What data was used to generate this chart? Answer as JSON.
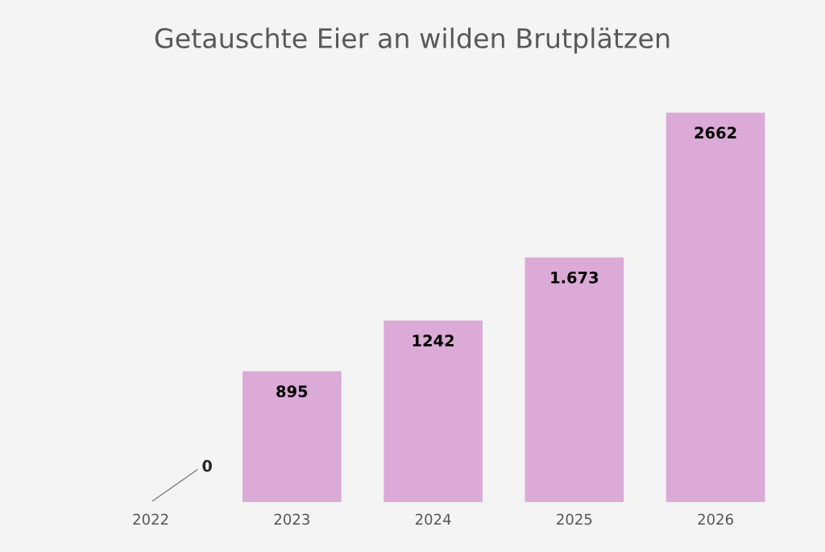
{
  "chart_data": {
    "type": "bar",
    "title": "Getauschte Eier an wilden Brutplätzen",
    "categories": [
      "2022",
      "2023",
      "2024",
      "2025",
      "2026"
    ],
    "values": [
      0,
      895,
      1242,
      1673,
      2662
    ],
    "value_labels": [
      "0",
      "895",
      "1242",
      "1.673",
      "2662"
    ],
    "color": "#dcaad6",
    "grid": false,
    "legend": false
  }
}
